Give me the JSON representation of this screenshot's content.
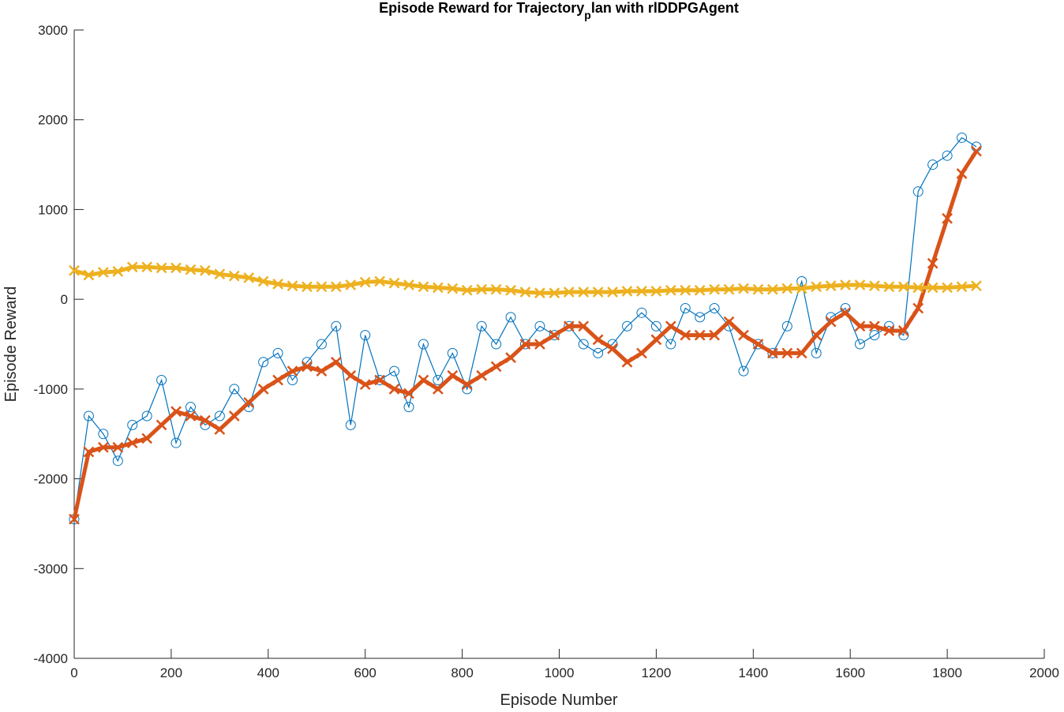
{
  "chart_data": {
    "type": "line",
    "title": {
      "main": "Episode Reward for Trajectory",
      "subscript": "p",
      "rest": "lan with rlDDPGAgent"
    },
    "x_label": "Episode Number",
    "y_label": "Episode Reward",
    "xlim": [
      0,
      2000
    ],
    "ylim": [
      -4000,
      3000
    ],
    "xticks": [
      0,
      200,
      400,
      600,
      800,
      1000,
      1200,
      1400,
      1600,
      1800,
      2000
    ],
    "yticks": [
      -4000,
      -3000,
      -2000,
      -1000,
      0,
      1000,
      2000,
      3000
    ],
    "grid": false,
    "x": [
      0,
      30,
      60,
      90,
      120,
      150,
      180,
      210,
      240,
      270,
      300,
      330,
      360,
      390,
      420,
      450,
      480,
      510,
      540,
      570,
      600,
      630,
      660,
      690,
      720,
      750,
      780,
      810,
      840,
      870,
      900,
      930,
      960,
      990,
      1020,
      1050,
      1080,
      1110,
      1140,
      1170,
      1200,
      1230,
      1260,
      1290,
      1320,
      1350,
      1380,
      1410,
      1440,
      1470,
      1500,
      1530,
      1560,
      1590,
      1620,
      1650,
      1680,
      1710,
      1740,
      1770,
      1800,
      1830,
      1860
    ],
    "series": [
      {
        "color": "#0072bd",
        "marker": "o",
        "values": [
          -2450,
          -1300,
          -1500,
          -1800,
          -1400,
          -1300,
          -900,
          -1600,
          -1200,
          -1400,
          -1300,
          -1000,
          -1200,
          -700,
          -600,
          -900,
          -700,
          -500,
          -300,
          -1400,
          -400,
          -900,
          -800,
          -1200,
          -500,
          -900,
          -600,
          -1000,
          -300,
          -500,
          -200,
          -500,
          -300,
          -400,
          -300,
          -500,
          -600,
          -500,
          -300,
          -150,
          -300,
          -500,
          -100,
          -200,
          -100,
          -300,
          -800,
          -500,
          -600,
          -300,
          200,
          -600,
          -200,
          -100,
          -500,
          -400,
          -300,
          -400,
          1200,
          1500,
          1600,
          1800,
          1700
        ]
      },
      {
        "color": "#d95319",
        "marker": "x",
        "values": [
          -2450,
          -1700,
          -1650,
          -1650,
          -1600,
          -1550,
          -1400,
          -1250,
          -1300,
          -1350,
          -1450,
          -1300,
          -1150,
          -1000,
          -900,
          -800,
          -750,
          -800,
          -700,
          -850,
          -950,
          -900,
          -1000,
          -1050,
          -900,
          -1000,
          -850,
          -950,
          -850,
          -750,
          -650,
          -500,
          -500,
          -400,
          -300,
          -300,
          -450,
          -550,
          -700,
          -600,
          -450,
          -300,
          -400,
          -400,
          -400,
          -250,
          -400,
          -500,
          -600,
          -600,
          -600,
          -400,
          -250,
          -150,
          -300,
          -300,
          -350,
          -350,
          -100,
          400,
          900,
          1400,
          1650
        ]
      },
      {
        "color": "#edb120",
        "marker": "x",
        "values": [
          320,
          270,
          300,
          310,
          360,
          360,
          350,
          350,
          330,
          320,
          280,
          260,
          240,
          200,
          170,
          150,
          140,
          140,
          140,
          160,
          190,
          200,
          180,
          160,
          140,
          130,
          120,
          100,
          110,
          110,
          100,
          80,
          70,
          70,
          80,
          80,
          80,
          80,
          90,
          90,
          90,
          100,
          100,
          100,
          110,
          110,
          120,
          110,
          110,
          120,
          120,
          140,
          150,
          160,
          160,
          150,
          140,
          140,
          130,
          130,
          130,
          140,
          150
        ]
      }
    ]
  }
}
